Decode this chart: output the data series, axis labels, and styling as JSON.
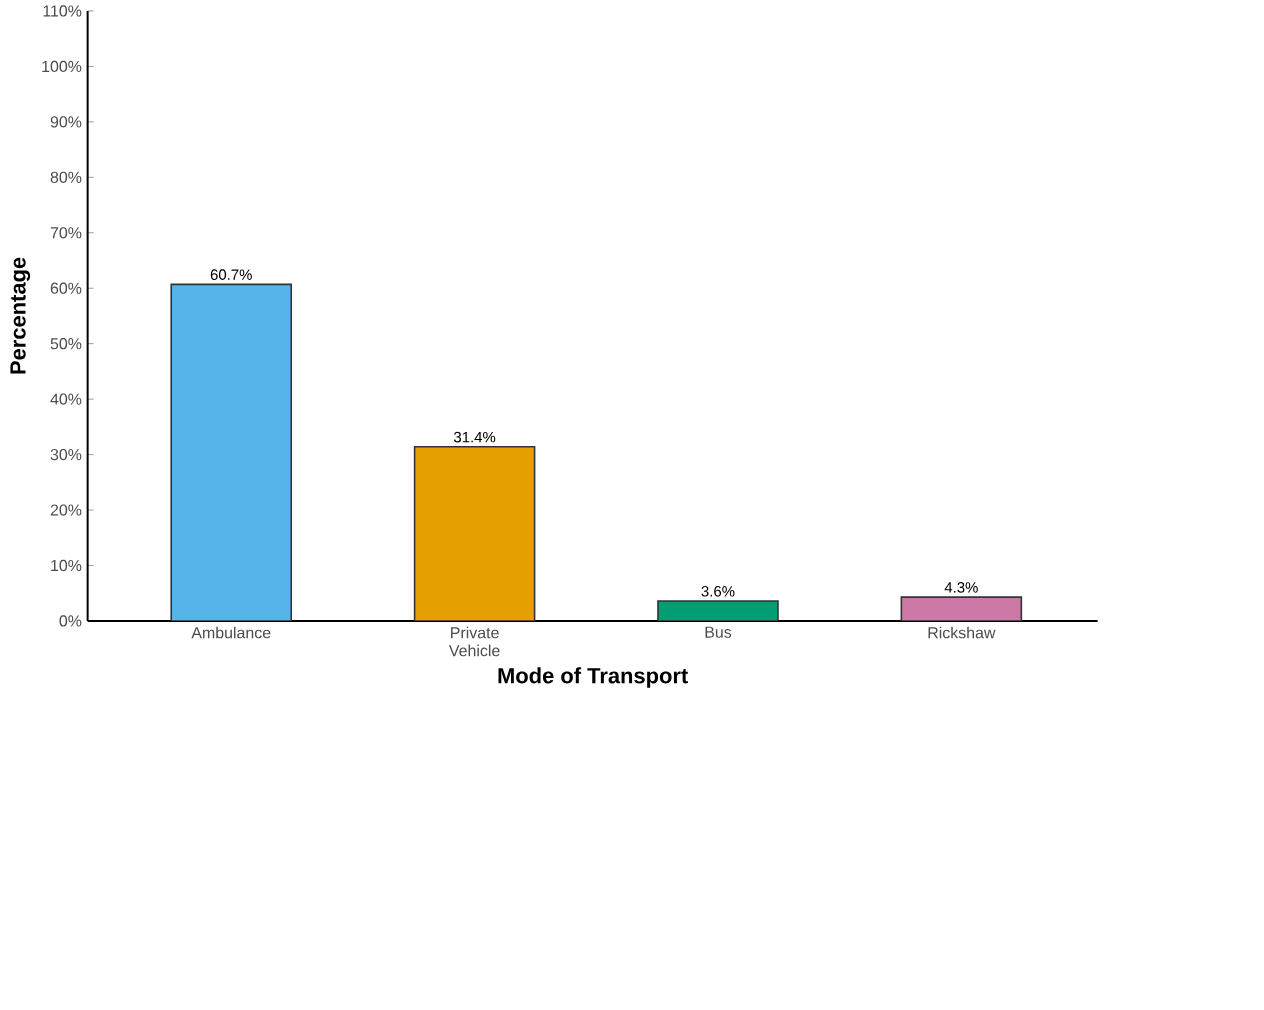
{
  "chart_data": {
    "type": "bar",
    "xlabel": "Mode of Transport",
    "ylabel": "Percentage",
    "categories": [
      "Ambulance",
      "Private Vehicle",
      "Bus",
      "Rickshaw"
    ],
    "values": [
      60.7,
      31.4,
      3.6,
      4.3
    ],
    "colors": [
      "#56b4e9",
      "#e69f00",
      "#009e73",
      "#cc79a7"
    ],
    "value_labels": [
      "60.7%",
      "31.4%",
      "3.6%",
      "4.3%"
    ],
    "ylim": [
      0,
      110
    ],
    "yticks": [
      {
        "value": 0,
        "label": "0%"
      },
      {
        "value": 10,
        "label": "10%"
      },
      {
        "value": 20,
        "label": "20%"
      },
      {
        "value": 30,
        "label": "30%"
      },
      {
        "value": 40,
        "label": "40%"
      },
      {
        "value": 50,
        "label": "50%"
      },
      {
        "value": 60,
        "label": "60%"
      },
      {
        "value": 70,
        "label": "70%"
      },
      {
        "value": 80,
        "label": "80%"
      },
      {
        "value": 90,
        "label": "90%"
      },
      {
        "value": 100,
        "label": "100%"
      },
      {
        "value": 110,
        "label": "110%"
      }
    ]
  }
}
